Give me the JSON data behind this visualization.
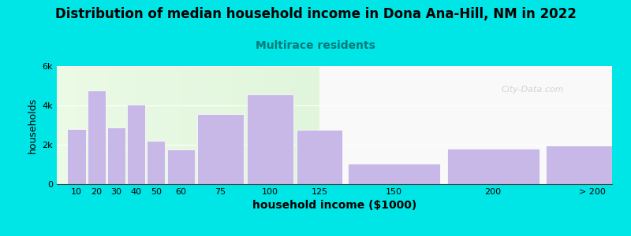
{
  "title": "Distribution of median household income in Dona Ana-Hill, NM in 2022",
  "subtitle": "Multirace residents",
  "xlabel": "household income ($1000)",
  "ylabel": "households",
  "bar_labels": [
    "10",
    "20",
    "30",
    "40",
    "50",
    "60",
    "75",
    "100",
    "125",
    "150",
    "200",
    "> 200"
  ],
  "bar_values": [
    2800,
    4750,
    2900,
    4050,
    2200,
    1750,
    3550,
    4550,
    2750,
    1050,
    1800,
    1950
  ],
  "bar_color": "#c8b8e8",
  "background_color": "#00e5e5",
  "title_fontsize": 12,
  "subtitle_fontsize": 10,
  "subtitle_color": "#007a7a",
  "ylabel_fontsize": 9,
  "xlabel_fontsize": 10,
  "ylim": [
    0,
    6000
  ],
  "yticks": [
    0,
    2000,
    4000,
    6000
  ],
  "ytick_labels": [
    "0",
    "2k",
    "4k",
    "6k"
  ],
  "positions": [
    10,
    20,
    30,
    40,
    50,
    60,
    75,
    100,
    125,
    150,
    200,
    250
  ],
  "widths": [
    10,
    10,
    10,
    10,
    10,
    15,
    25,
    25,
    25,
    50,
    50,
    50
  ],
  "xlim_left": 5,
  "xlim_right": 285,
  "left_bg_end": 137.5,
  "watermark": "City-Data.com"
}
